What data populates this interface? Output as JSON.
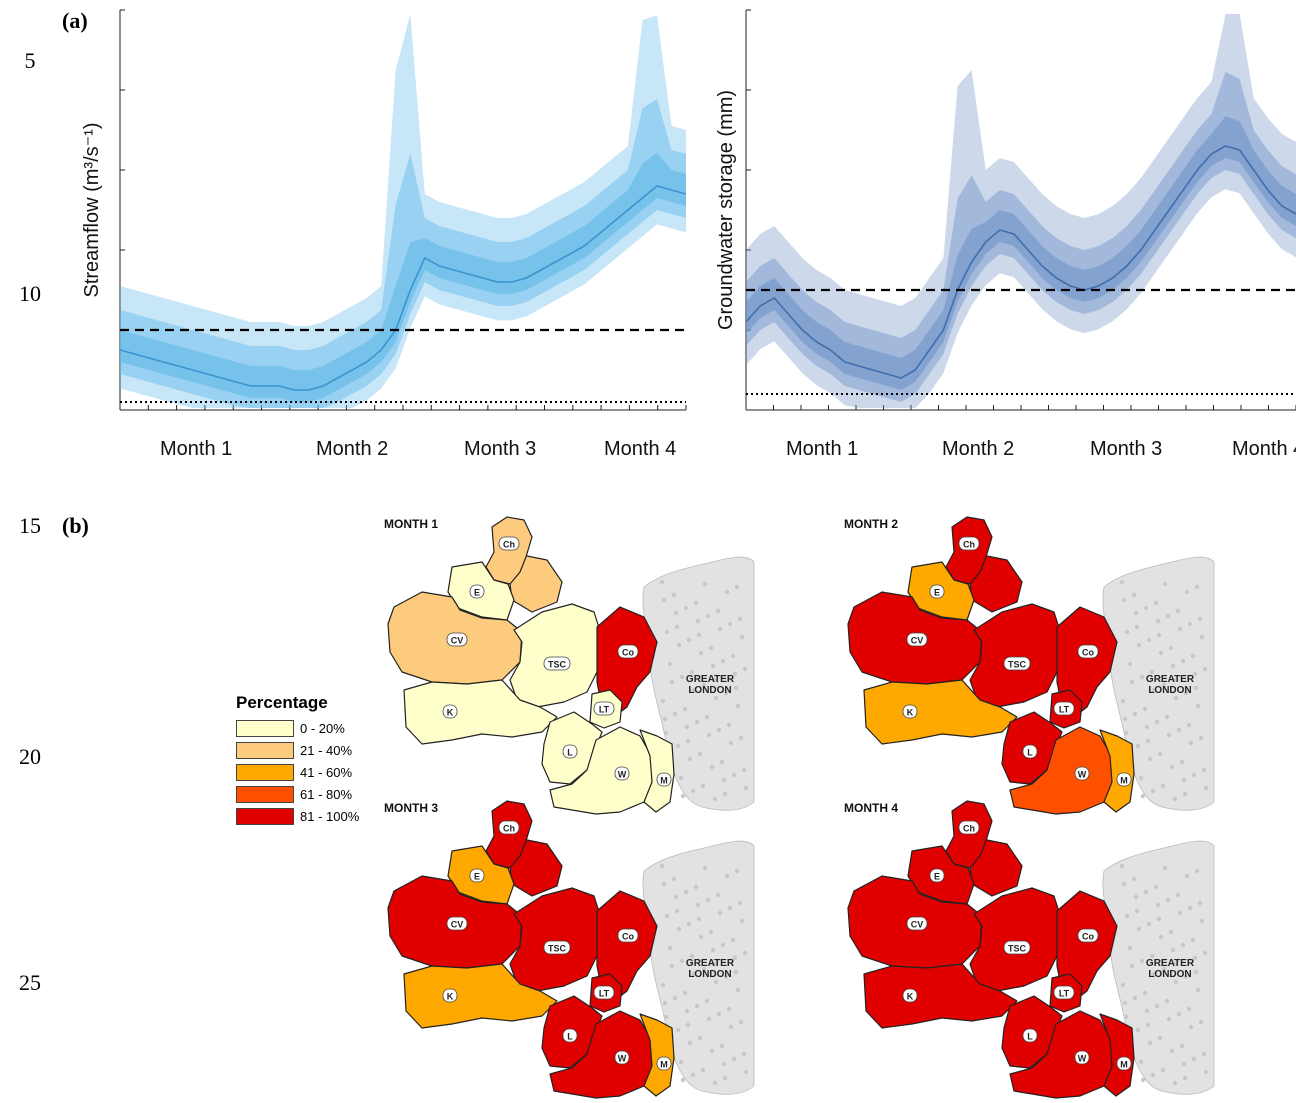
{
  "line_numbers": [
    "5",
    "10",
    "15",
    "20",
    "25"
  ],
  "panel_a_label": "(a)",
  "panel_b_label": "(b)",
  "colors": {
    "streamflow_band": "#5fb8e8",
    "streamflow_median": "#3a95cf",
    "groundwater_band": "#6f93c7",
    "groundwater_median": "#3f6fae",
    "pct_0_20": "#ffffcc",
    "pct_21_40": "#fdcb7e",
    "pct_41_60": "#ffa800",
    "pct_61_80": "#ff5000",
    "pct_81_100": "#e00000",
    "london": "#e2e2e2"
  },
  "chart_data": [
    {
      "type": "area",
      "ylabel": "Streamflow (m³/s⁻¹)",
      "categories": [
        "Month 1",
        "Month 2",
        "Month 3",
        "Month 4"
      ],
      "threshold_dashed": 0.2,
      "threshold_dotted": 0.02,
      "ylim": [
        0,
        1
      ],
      "median_curve": [
        0.15,
        0.14,
        0.13,
        0.12,
        0.11,
        0.1,
        0.09,
        0.08,
        0.07,
        0.06,
        0.06,
        0.06,
        0.05,
        0.05,
        0.06,
        0.08,
        0.1,
        0.12,
        0.15,
        0.2,
        0.3,
        0.38,
        0.36,
        0.35,
        0.34,
        0.33,
        0.32,
        0.32,
        0.33,
        0.35,
        0.37,
        0.39,
        0.41,
        0.44,
        0.47,
        0.5,
        0.53,
        0.56,
        0.55,
        0.54
      ],
      "band_offsets": [
        0.05,
        0.1,
        0.16
      ]
    },
    {
      "type": "area",
      "ylabel": "Groundwater storage (mm)",
      "categories": [
        "Month 1",
        "Month 2",
        "Month 3",
        "Month 4"
      ],
      "threshold_dashed": 0.3,
      "threshold_dotted": 0.04,
      "ylim": [
        0,
        1
      ],
      "median_curve": [
        0.22,
        0.26,
        0.28,
        0.24,
        0.2,
        0.17,
        0.15,
        0.12,
        0.11,
        0.1,
        0.09,
        0.08,
        0.1,
        0.15,
        0.2,
        0.3,
        0.37,
        0.42,
        0.45,
        0.44,
        0.4,
        0.36,
        0.33,
        0.31,
        0.3,
        0.31,
        0.33,
        0.36,
        0.4,
        0.45,
        0.5,
        0.55,
        0.6,
        0.64,
        0.66,
        0.65,
        0.6,
        0.55,
        0.51,
        0.49
      ],
      "band_offsets": [
        0.05,
        0.1,
        0.18
      ]
    }
  ],
  "legend": {
    "title": "Percentage",
    "items": [
      {
        "label": "0 - 20%",
        "color": "#ffffcc"
      },
      {
        "label": "21 - 40%",
        "color": "#fdcb7e"
      },
      {
        "label": "41 - 60%",
        "color": "#ffa800"
      },
      {
        "label": "61 - 80%",
        "color": "#ff5000"
      },
      {
        "label": "81 - 100%",
        "color": "#e00000"
      }
    ]
  },
  "maps": [
    {
      "title": "MONTH 1",
      "classes": {
        "Ch": "pct_21_40",
        "E": "pct_0_20",
        "CV": "pct_21_40",
        "TSC": "pct_0_20",
        "Co": "pct_81_100",
        "K": "pct_0_20",
        "LT": "pct_0_20",
        "L": "pct_0_20",
        "W": "pct_0_20",
        "M": "pct_0_20",
        "R": "pct_21_40"
      }
    },
    {
      "title": "MONTH 2",
      "classes": {
        "Ch": "pct_81_100",
        "E": "pct_41_60",
        "CV": "pct_81_100",
        "TSC": "pct_81_100",
        "Co": "pct_81_100",
        "K": "pct_41_60",
        "LT": "pct_81_100",
        "L": "pct_81_100",
        "W": "pct_61_80",
        "M": "pct_41_60",
        "R": "pct_81_100"
      }
    },
    {
      "title": "MONTH 3",
      "classes": {
        "Ch": "pct_81_100",
        "E": "pct_41_60",
        "CV": "pct_81_100",
        "TSC": "pct_81_100",
        "Co": "pct_81_100",
        "K": "pct_41_60",
        "LT": "pct_81_100",
        "L": "pct_81_100",
        "W": "pct_81_100",
        "M": "pct_41_60",
        "R": "pct_81_100"
      }
    },
    {
      "title": "MONTH 4",
      "classes": {
        "Ch": "pct_81_100",
        "E": "pct_81_100",
        "CV": "pct_81_100",
        "TSC": "pct_81_100",
        "Co": "pct_81_100",
        "K": "pct_81_100",
        "LT": "pct_81_100",
        "L": "pct_81_100",
        "W": "pct_81_100",
        "M": "pct_81_100",
        "R": "pct_81_100"
      }
    }
  ],
  "region_labels": {
    "Ch": "Ch",
    "E": "E",
    "CV": "CV",
    "TSC": "TSC",
    "Co": "Co",
    "K": "K",
    "LT": "LT",
    "L": "L",
    "W": "W",
    "M": "M"
  },
  "london_label": [
    "GREATER",
    "LONDON"
  ]
}
